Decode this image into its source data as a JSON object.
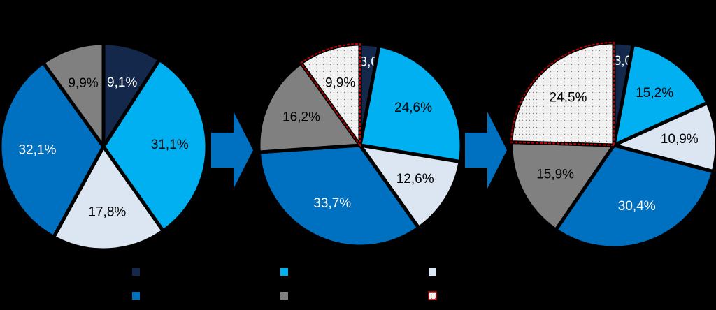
{
  "chart_data": [
    {
      "type": "pie",
      "values": [
        9.1,
        31.1,
        17.8,
        32.1,
        9.9
      ],
      "value_labels": [
        "9,1%",
        "31,1%",
        "17,8%",
        "32,1%",
        "9,9%"
      ],
      "colors": [
        "#14284b",
        "#00b0f0",
        "#dce6f2",
        "#0070c0",
        "#808080"
      ],
      "dotted": [
        false,
        false,
        false,
        false,
        false
      ]
    },
    {
      "type": "pie",
      "values": [
        3.0,
        24.6,
        12.6,
        33.7,
        16.2,
        9.9
      ],
      "value_labels": [
        "3,0%",
        "24,6%",
        "12,6%",
        "33,7%",
        "16,2%",
        "9,9%"
      ],
      "colors": [
        "#14284b",
        "#00b0f0",
        "#dce6f2",
        "#0070c0",
        "#808080",
        "#c00000"
      ],
      "dotted": [
        false,
        false,
        false,
        false,
        false,
        true
      ]
    },
    {
      "type": "pie",
      "values": [
        3.0,
        15.2,
        10.9,
        30.4,
        15.9,
        24.5
      ],
      "value_labels": [
        "3,0%",
        "15,2%",
        "10,9%",
        "30,4%",
        "15,9%",
        "24,5%"
      ],
      "colors": [
        "#14284b",
        "#00b0f0",
        "#dce6f2",
        "#0070c0",
        "#808080",
        "#c00000"
      ],
      "dotted": [
        false,
        false,
        false,
        false,
        false,
        true
      ]
    }
  ]
}
